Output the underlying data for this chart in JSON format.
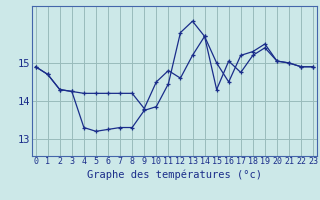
{
  "xlabel": "Graphe des températures (°c)",
  "background_color": "#cce8e8",
  "grid_color": "#99bbbb",
  "line_color": "#1a2d8a",
  "x_ticks": [
    0,
    1,
    2,
    3,
    4,
    5,
    6,
    7,
    8,
    9,
    10,
    11,
    12,
    13,
    14,
    15,
    16,
    17,
    18,
    19,
    20,
    21,
    22,
    23
  ],
  "y_ticks": [
    13,
    14,
    15
  ],
  "ylim": [
    12.55,
    16.5
  ],
  "xlim": [
    -0.3,
    23.3
  ],
  "series1_x": [
    0,
    1,
    2,
    3,
    4,
    5,
    6,
    7,
    8,
    9,
    10,
    11,
    12,
    13,
    14,
    15,
    16,
    17,
    18,
    19,
    20,
    21,
    22,
    23
  ],
  "series1_y": [
    14.9,
    14.7,
    14.3,
    14.25,
    14.2,
    14.2,
    14.2,
    14.2,
    14.2,
    13.8,
    14.5,
    14.8,
    14.6,
    15.2,
    15.7,
    15.0,
    14.5,
    15.2,
    15.3,
    15.5,
    15.05,
    15.0,
    14.9,
    14.9
  ],
  "series2_x": [
    0,
    1,
    2,
    3,
    4,
    5,
    6,
    7,
    8,
    9,
    10,
    11,
    12,
    13,
    14,
    15,
    16,
    17,
    18,
    19,
    20,
    21,
    22,
    23
  ],
  "series2_y": [
    14.9,
    14.7,
    14.3,
    14.25,
    13.3,
    13.2,
    13.25,
    13.3,
    13.3,
    13.75,
    13.85,
    14.45,
    15.8,
    16.1,
    15.7,
    14.3,
    15.05,
    14.75,
    15.2,
    15.4,
    15.05,
    15.0,
    14.9,
    14.9
  ],
  "tick_fontsize": 6.0,
  "xlabel_fontsize": 7.5
}
